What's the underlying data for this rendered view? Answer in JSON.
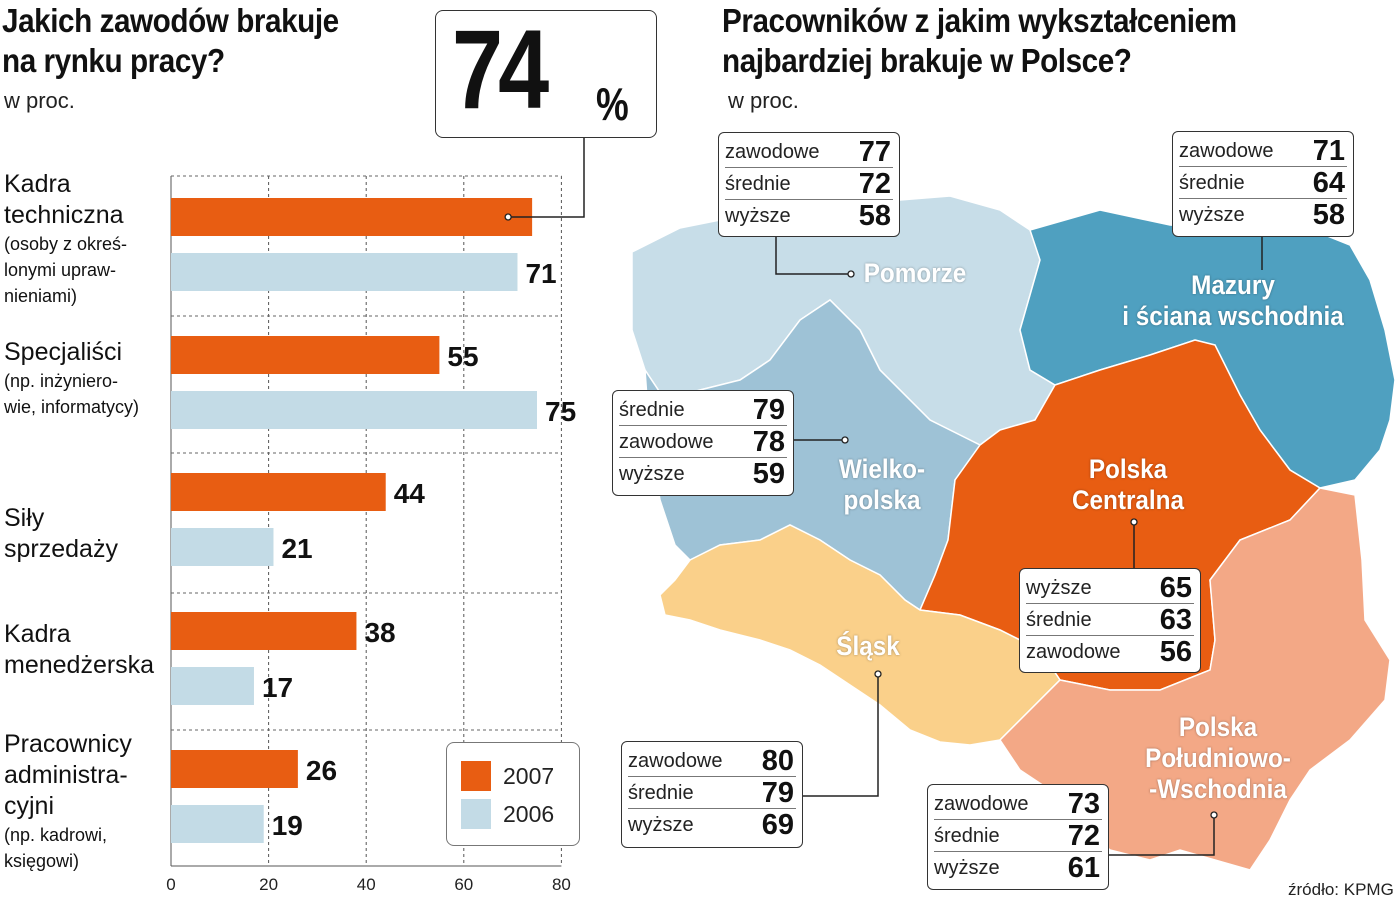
{
  "left": {
    "title_line1": "Jakich zawodów brakuje",
    "title_line2": "na rynku pracy?",
    "subtitle": "w proc.",
    "highlight_value": "74",
    "highlight_unit": "%"
  },
  "right": {
    "title_line1": "Pracowników z jakim wykształceniem",
    "title_line2": "najbardziej brakuje w Polsce?",
    "subtitle": "w proc."
  },
  "colors": {
    "series_2007": "#e85d12",
    "series_2006": "#c3dbe6",
    "region_pomorze": "#c7dde8",
    "region_mazury": "#4fa0c0",
    "region_wielkopolska": "#9ec2d6",
    "region_centralna": "#e85d12",
    "region_slask": "#fad08a",
    "region_poludniowo": "#f3a886"
  },
  "chart_data": [
    {
      "type": "bar",
      "orientation": "horizontal",
      "categories": [
        {
          "lines": [
            "Kadra",
            "techniczna"
          ],
          "note": [
            "(osoby z okreś-",
            "lonymi upraw-",
            "nieniami)"
          ]
        },
        {
          "lines": [
            "Specjaliści"
          ],
          "note": [
            "(np. inżyniero-",
            "wie, informatycy)"
          ]
        },
        {
          "lines": [
            "Siły",
            "sprzedaży"
          ],
          "note": []
        },
        {
          "lines": [
            "Kadra",
            "menedżerska"
          ],
          "note": []
        },
        {
          "lines": [
            "Pracownicy",
            "administra-",
            "cyjni"
          ],
          "note": [
            "(np. kadrowi,",
            "księgowi)"
          ]
        }
      ],
      "series": [
        {
          "name": "2007",
          "values": [
            74,
            55,
            44,
            38,
            26
          ]
        },
        {
          "name": "2006",
          "values": [
            71,
            75,
            21,
            17,
            19
          ]
        }
      ],
      "value_labels_2007": [
        "",
        "55",
        "44",
        "38",
        "26"
      ],
      "value_labels_2006": [
        "71",
        "75",
        "21",
        "17",
        "19"
      ],
      "xlim": [
        0,
        80
      ],
      "xticks": [
        "0",
        "20",
        "40",
        "60",
        "80"
      ],
      "grid": "vertical dashed",
      "legend_position": "bottom-right"
    },
    {
      "type": "table",
      "regions": [
        {
          "name_lines": [
            "Pomorze"
          ],
          "rows": [
            {
              "label": "zawodowe",
              "value": 77
            },
            {
              "label": "średnie",
              "value": 72
            },
            {
              "label": "wyższe",
              "value": 58
            }
          ]
        },
        {
          "name_lines": [
            "Mazury",
            "i ściana wschodnia"
          ],
          "rows": [
            {
              "label": "zawodowe",
              "value": 71
            },
            {
              "label": "średnie",
              "value": 64
            },
            {
              "label": "wyższe",
              "value": 58
            }
          ]
        },
        {
          "name_lines": [
            "Wielko-",
            "polska"
          ],
          "rows": [
            {
              "label": "średnie",
              "value": 79
            },
            {
              "label": "zawodowe",
              "value": 78
            },
            {
              "label": "wyższe",
              "value": 59
            }
          ]
        },
        {
          "name_lines": [
            "Polska",
            "Centralna"
          ],
          "rows": [
            {
              "label": "wyższe",
              "value": 65
            },
            {
              "label": "średnie",
              "value": 63
            },
            {
              "label": "zawodowe",
              "value": 56
            }
          ]
        },
        {
          "name_lines": [
            "Śląsk"
          ],
          "rows": [
            {
              "label": "zawodowe",
              "value": 80
            },
            {
              "label": "średnie",
              "value": 79
            },
            {
              "label": "wyższe",
              "value": 69
            }
          ]
        },
        {
          "name_lines": [
            "Polska",
            "Południowo-",
            "-Wschodnia"
          ],
          "rows": [
            {
              "label": "zawodowe",
              "value": 73
            },
            {
              "label": "średnie",
              "value": 72
            },
            {
              "label": "wyższe",
              "value": 61
            }
          ]
        }
      ]
    }
  ],
  "source": "źródło: KPMG"
}
